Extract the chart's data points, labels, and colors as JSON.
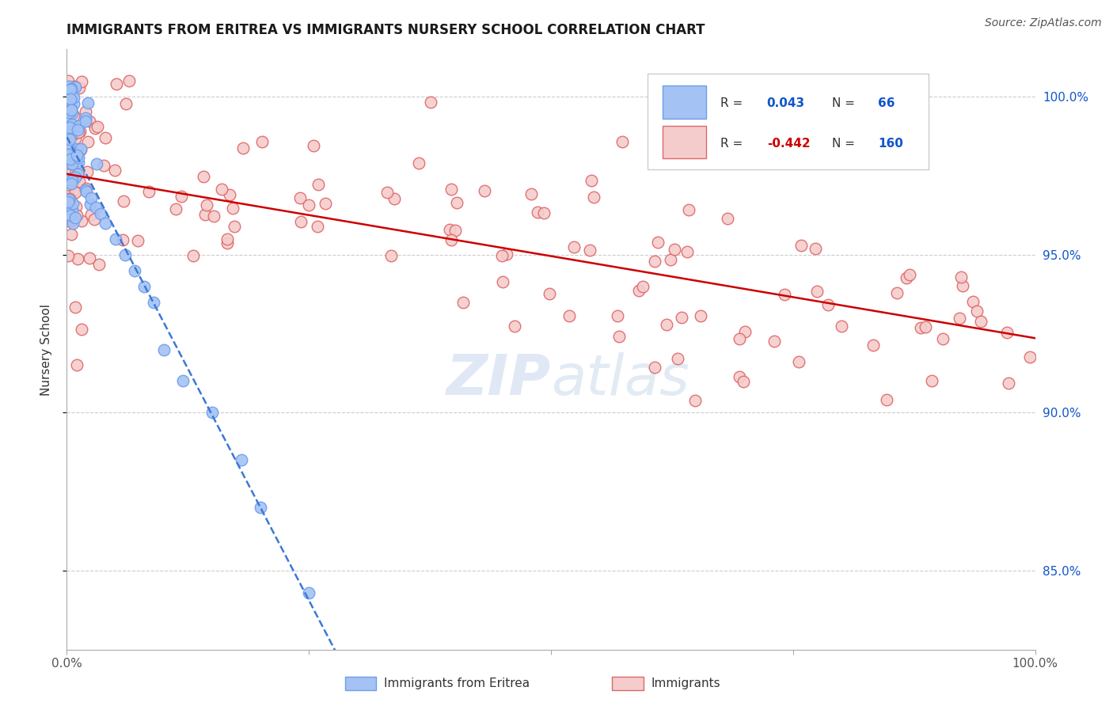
{
  "title": "IMMIGRANTS FROM ERITREA VS IMMIGRANTS NURSERY SCHOOL CORRELATION CHART",
  "source": "Source: ZipAtlas.com",
  "ylabel": "Nursery School",
  "xlim": [
    0.0,
    1.0
  ],
  "ylim": [
    0.825,
    1.015
  ],
  "yticks": [
    0.85,
    0.9,
    0.95,
    1.0
  ],
  "ytick_labels": [
    "85.0%",
    "90.0%",
    "95.0%",
    "100.0%"
  ],
  "blue_R": 0.043,
  "blue_N": 66,
  "pink_R": -0.442,
  "pink_N": 160,
  "blue_color": "#a4c2f4",
  "pink_color": "#f4cccc",
  "blue_edge": "#6d9eeb",
  "pink_edge": "#e06666",
  "trend_blue_color": "#3c78d8",
  "trend_pink_color": "#cc0000",
  "background": "#ffffff",
  "grid_color": "#cccccc",
  "watermark_color": "#ccd9f0"
}
